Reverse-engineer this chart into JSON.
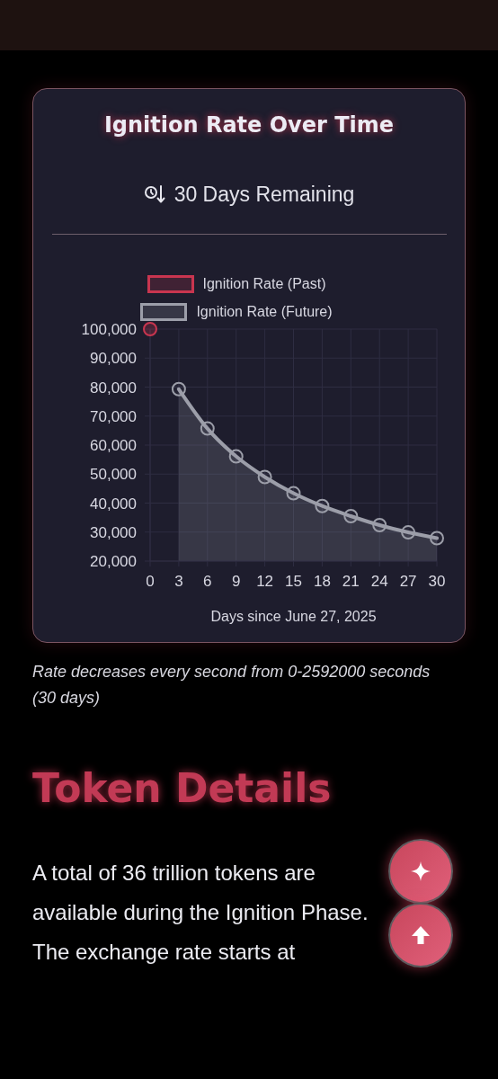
{
  "chart_data": {
    "type": "area",
    "title": "Ignition Rate Over Time",
    "subtitle": "30 Days Remaining",
    "xlabel": "Days since June 27, 2025",
    "xlim": [
      0,
      30
    ],
    "xticks": [
      0,
      3,
      6,
      9,
      12,
      15,
      18,
      21,
      24,
      27,
      30
    ],
    "ylim": [
      20000,
      100000
    ],
    "yticks": [
      {
        "value": 20000,
        "label": "20,000"
      },
      {
        "value": 30000,
        "label": "30,000"
      },
      {
        "value": 40000,
        "label": "40,000"
      },
      {
        "value": 50000,
        "label": "50,000"
      },
      {
        "value": 60000,
        "label": "60,000"
      },
      {
        "value": 70000,
        "label": "70,000"
      },
      {
        "value": 80000,
        "label": "80,000"
      },
      {
        "value": 90000,
        "label": "90,000"
      },
      {
        "value": 100000,
        "label": "100,000"
      }
    ],
    "grid": true,
    "legend": "top",
    "marker": "circle",
    "series": [
      {
        "name": "Ignition Rate (Past)",
        "type": "scatter",
        "color": "#c8354f",
        "x": [
          0
        ],
        "values": [
          100000
        ]
      },
      {
        "name": "Ignition Rate (Future)",
        "color": "#9c9ea9",
        "x": [
          3,
          6,
          9,
          12,
          15,
          18,
          21,
          24,
          27,
          30
        ],
        "values": [
          79300,
          65700,
          56100,
          49000,
          43400,
          39000,
          35500,
          32400,
          29900,
          27900
        ]
      }
    ],
    "annotations": [
      "Rate decreases every second from 0-2592000 seconds (30 days)",
      "Token Details",
      "A total of 36 trillion tokens are available during the Ignition Phase. The exchange rate starts at"
    ]
  }
}
